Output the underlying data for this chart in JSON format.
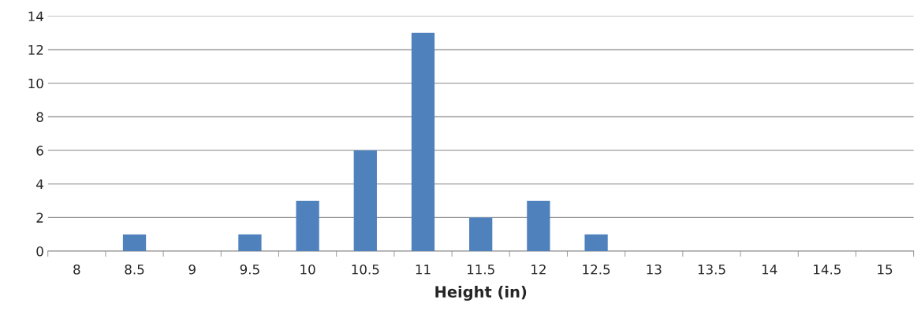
{
  "chart_data": {
    "type": "bar",
    "xlabel": "Height (in)",
    "categories": [
      "8",
      "8.5",
      "9",
      "9.5",
      "10",
      "10.5",
      "11",
      "11.5",
      "12",
      "12.5",
      "13",
      "13.5",
      "14",
      "14.5",
      "15"
    ],
    "values": [
      0,
      1,
      0,
      1,
      3,
      6,
      13,
      2,
      3,
      1,
      0,
      0,
      0,
      0,
      0
    ],
    "color": "#4f81bd",
    "ylim": [
      0,
      14
    ],
    "yticks": [
      0,
      2,
      4,
      6,
      8,
      10,
      12,
      14
    ],
    "grid": "y",
    "legend": false
  }
}
